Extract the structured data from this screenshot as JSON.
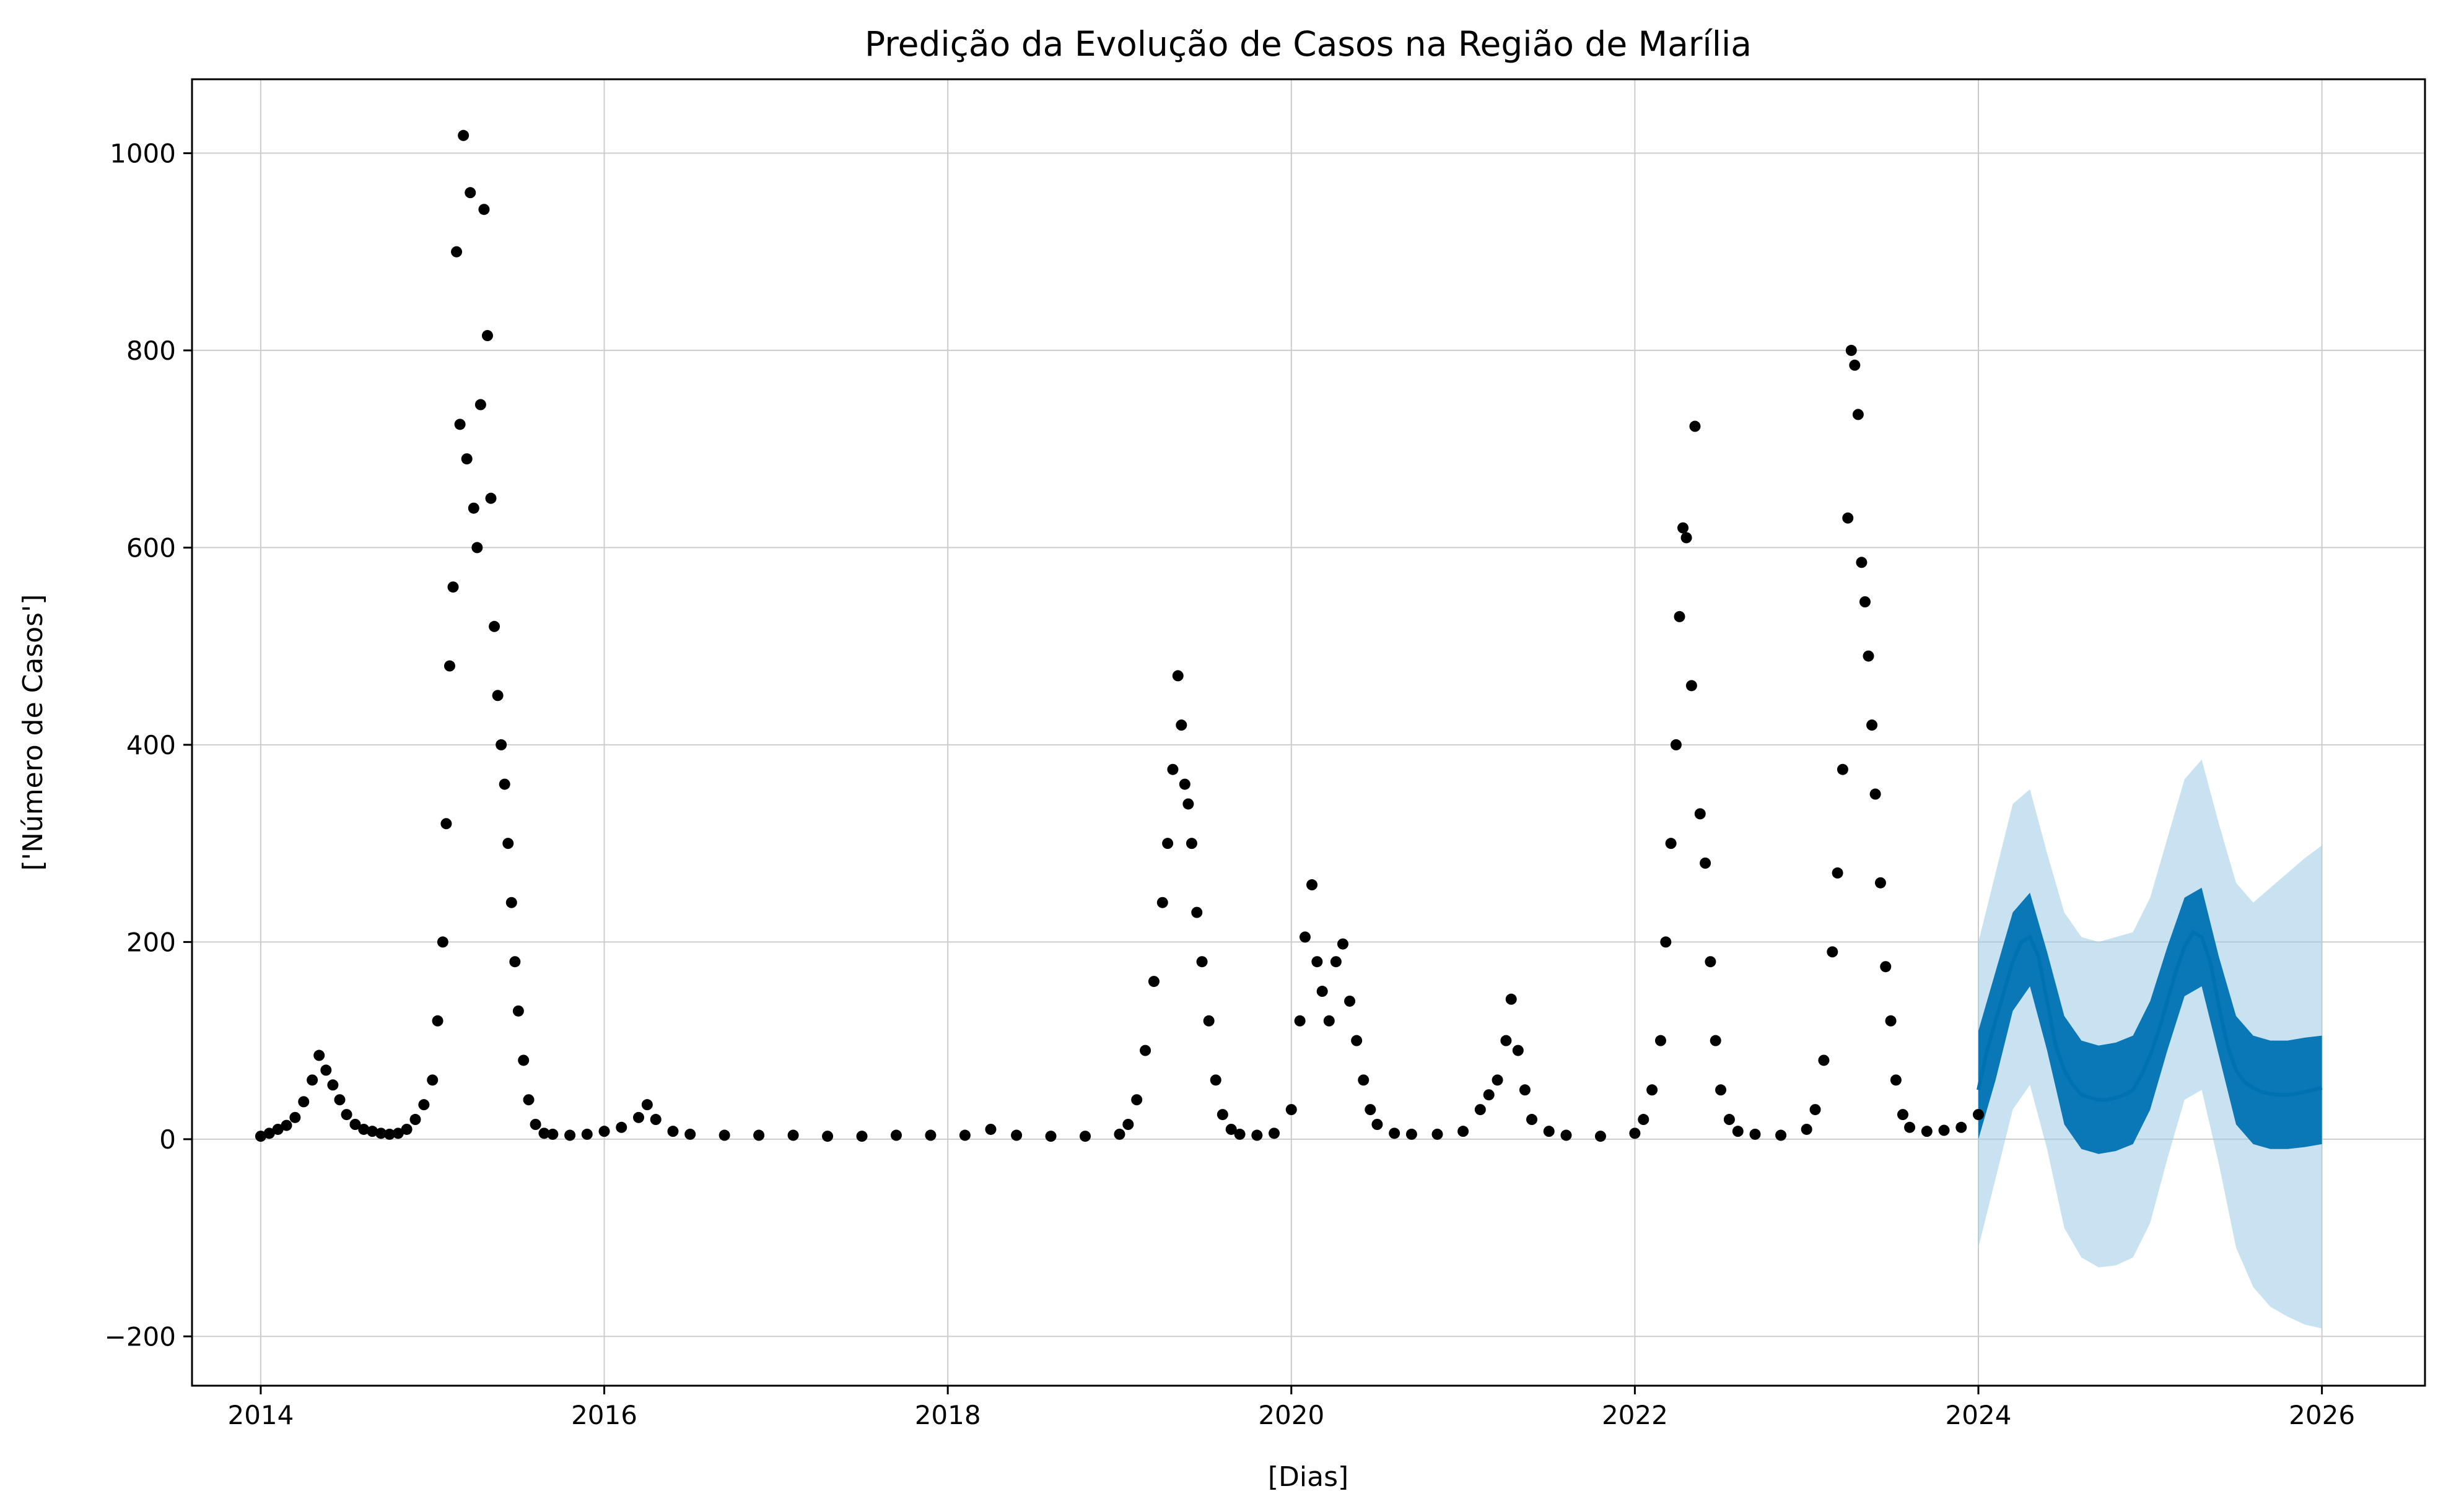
{
  "chart_data": {
    "type": "scatter",
    "title": "Predição da Evolução de Casos na Região de Marília",
    "xlabel": "[Dias]",
    "ylabel": "['Número de Casos']",
    "xlim": [
      2013.6,
      2026.6
    ],
    "ylim": [
      -250,
      1075
    ],
    "x_ticks": [
      2014,
      2016,
      2018,
      2020,
      2022,
      2024,
      2026
    ],
    "x_tick_labels": [
      "2014",
      "2016",
      "2018",
      "2020",
      "2022",
      "2024",
      "2026"
    ],
    "y_ticks": [
      -200,
      0,
      200,
      400,
      600,
      800,
      1000
    ],
    "y_tick_labels": [
      "−200",
      "0",
      "200",
      "400",
      "600",
      "800",
      "1000"
    ],
    "grid": true,
    "legend": "none",
    "colors": {
      "observed": "#000000",
      "forecast": "#0072b2",
      "uncertainty": "#9ccbe8"
    },
    "series": [
      {
        "role": "observed",
        "points": [
          [
            2014.0,
            3
          ],
          [
            2014.05,
            6
          ],
          [
            2014.1,
            10
          ],
          [
            2014.15,
            14
          ],
          [
            2014.2,
            22
          ],
          [
            2014.25,
            38
          ],
          [
            2014.3,
            60
          ],
          [
            2014.34,
            85
          ],
          [
            2014.38,
            70
          ],
          [
            2014.42,
            55
          ],
          [
            2014.46,
            40
          ],
          [
            2014.5,
            25
          ],
          [
            2014.55,
            15
          ],
          [
            2014.6,
            10
          ],
          [
            2014.65,
            8
          ],
          [
            2014.7,
            6
          ],
          [
            2014.75,
            5
          ],
          [
            2014.8,
            6
          ],
          [
            2014.85,
            10
          ],
          [
            2014.9,
            20
          ],
          [
            2014.95,
            35
          ],
          [
            2015.0,
            60
          ],
          [
            2015.03,
            120
          ],
          [
            2015.06,
            200
          ],
          [
            2015.08,
            320
          ],
          [
            2015.1,
            480
          ],
          [
            2015.12,
            560
          ],
          [
            2015.14,
            900
          ],
          [
            2015.16,
            725
          ],
          [
            2015.18,
            1018
          ],
          [
            2015.2,
            690
          ],
          [
            2015.22,
            960
          ],
          [
            2015.24,
            640
          ],
          [
            2015.26,
            600
          ],
          [
            2015.28,
            745
          ],
          [
            2015.3,
            943
          ],
          [
            2015.32,
            815
          ],
          [
            2015.34,
            650
          ],
          [
            2015.36,
            520
          ],
          [
            2015.38,
            450
          ],
          [
            2015.4,
            400
          ],
          [
            2015.42,
            360
          ],
          [
            2015.44,
            300
          ],
          [
            2015.46,
            240
          ],
          [
            2015.48,
            180
          ],
          [
            2015.5,
            130
          ],
          [
            2015.53,
            80
          ],
          [
            2015.56,
            40
          ],
          [
            2015.6,
            15
          ],
          [
            2015.65,
            6
          ],
          [
            2015.7,
            5
          ],
          [
            2015.8,
            4
          ],
          [
            2015.9,
            5
          ],
          [
            2016.0,
            8
          ],
          [
            2016.1,
            12
          ],
          [
            2016.2,
            22
          ],
          [
            2016.25,
            35
          ],
          [
            2016.3,
            20
          ],
          [
            2016.4,
            8
          ],
          [
            2016.5,
            5
          ],
          [
            2016.7,
            4
          ],
          [
            2016.9,
            4
          ],
          [
            2017.1,
            4
          ],
          [
            2017.3,
            3
          ],
          [
            2017.5,
            3
          ],
          [
            2017.7,
            4
          ],
          [
            2017.9,
            4
          ],
          [
            2018.1,
            4
          ],
          [
            2018.25,
            10
          ],
          [
            2018.4,
            4
          ],
          [
            2018.6,
            3
          ],
          [
            2018.8,
            3
          ],
          [
            2019.0,
            5
          ],
          [
            2019.05,
            15
          ],
          [
            2019.1,
            40
          ],
          [
            2019.15,
            90
          ],
          [
            2019.2,
            160
          ],
          [
            2019.25,
            240
          ],
          [
            2019.28,
            300
          ],
          [
            2019.31,
            375
          ],
          [
            2019.34,
            470
          ],
          [
            2019.36,
            420
          ],
          [
            2019.38,
            360
          ],
          [
            2019.4,
            340
          ],
          [
            2019.42,
            300
          ],
          [
            2019.45,
            230
          ],
          [
            2019.48,
            180
          ],
          [
            2019.52,
            120
          ],
          [
            2019.56,
            60
          ],
          [
            2019.6,
            25
          ],
          [
            2019.65,
            10
          ],
          [
            2019.7,
            5
          ],
          [
            2019.8,
            4
          ],
          [
            2019.9,
            6
          ],
          [
            2020.0,
            30
          ],
          [
            2020.05,
            120
          ],
          [
            2020.08,
            205
          ],
          [
            2020.12,
            258
          ],
          [
            2020.15,
            180
          ],
          [
            2020.18,
            150
          ],
          [
            2020.22,
            120
          ],
          [
            2020.26,
            180
          ],
          [
            2020.3,
            198
          ],
          [
            2020.34,
            140
          ],
          [
            2020.38,
            100
          ],
          [
            2020.42,
            60
          ],
          [
            2020.46,
            30
          ],
          [
            2020.5,
            15
          ],
          [
            2020.6,
            6
          ],
          [
            2020.7,
            5
          ],
          [
            2020.85,
            5
          ],
          [
            2021.0,
            8
          ],
          [
            2021.1,
            30
          ],
          [
            2021.15,
            45
          ],
          [
            2021.2,
            60
          ],
          [
            2021.25,
            100
          ],
          [
            2021.28,
            142
          ],
          [
            2021.32,
            90
          ],
          [
            2021.36,
            50
          ],
          [
            2021.4,
            20
          ],
          [
            2021.5,
            8
          ],
          [
            2021.6,
            4
          ],
          [
            2021.8,
            3
          ],
          [
            2022.0,
            6
          ],
          [
            2022.05,
            20
          ],
          [
            2022.1,
            50
          ],
          [
            2022.15,
            100
          ],
          [
            2022.18,
            200
          ],
          [
            2022.21,
            300
          ],
          [
            2022.24,
            400
          ],
          [
            2022.26,
            530
          ],
          [
            2022.28,
            620
          ],
          [
            2022.3,
            610
          ],
          [
            2022.33,
            460
          ],
          [
            2022.35,
            723
          ],
          [
            2022.38,
            330
          ],
          [
            2022.41,
            280
          ],
          [
            2022.44,
            180
          ],
          [
            2022.47,
            100
          ],
          [
            2022.5,
            50
          ],
          [
            2022.55,
            20
          ],
          [
            2022.6,
            8
          ],
          [
            2022.7,
            5
          ],
          [
            2022.85,
            4
          ],
          [
            2023.0,
            10
          ],
          [
            2023.05,
            30
          ],
          [
            2023.1,
            80
          ],
          [
            2023.15,
            190
          ],
          [
            2023.18,
            270
          ],
          [
            2023.21,
            375
          ],
          [
            2023.24,
            630
          ],
          [
            2023.26,
            800
          ],
          [
            2023.28,
            785
          ],
          [
            2023.3,
            735
          ],
          [
            2023.32,
            585
          ],
          [
            2023.34,
            545
          ],
          [
            2023.36,
            490
          ],
          [
            2023.38,
            420
          ],
          [
            2023.4,
            350
          ],
          [
            2023.43,
            260
          ],
          [
            2023.46,
            175
          ],
          [
            2023.49,
            120
          ],
          [
            2023.52,
            60
          ],
          [
            2023.56,
            25
          ],
          [
            2023.6,
            12
          ],
          [
            2023.7,
            8
          ],
          [
            2023.8,
            9
          ],
          [
            2023.9,
            12
          ],
          [
            2024.0,
            25
          ]
        ]
      },
      {
        "role": "forecast",
        "points": [
          [
            2024.0,
            50
          ],
          [
            2024.05,
            90
          ],
          [
            2024.1,
            120
          ],
          [
            2024.15,
            150
          ],
          [
            2024.2,
            180
          ],
          [
            2024.25,
            200
          ],
          [
            2024.3,
            205
          ],
          [
            2024.35,
            185
          ],
          [
            2024.4,
            140
          ],
          [
            2024.45,
            95
          ],
          [
            2024.5,
            70
          ],
          [
            2024.55,
            55
          ],
          [
            2024.6,
            45
          ],
          [
            2024.65,
            42
          ],
          [
            2024.7,
            40
          ],
          [
            2024.75,
            40
          ],
          [
            2024.8,
            42
          ],
          [
            2024.85,
            45
          ],
          [
            2024.9,
            50
          ],
          [
            2024.95,
            65
          ],
          [
            2025.0,
            85
          ],
          [
            2025.05,
            110
          ],
          [
            2025.1,
            140
          ],
          [
            2025.15,
            170
          ],
          [
            2025.2,
            195
          ],
          [
            2025.25,
            210
          ],
          [
            2025.3,
            205
          ],
          [
            2025.35,
            180
          ],
          [
            2025.4,
            135
          ],
          [
            2025.45,
            95
          ],
          [
            2025.5,
            70
          ],
          [
            2025.55,
            58
          ],
          [
            2025.6,
            52
          ],
          [
            2025.65,
            48
          ],
          [
            2025.7,
            46
          ],
          [
            2025.75,
            45
          ],
          [
            2025.8,
            45
          ],
          [
            2025.85,
            46
          ],
          [
            2025.9,
            48
          ],
          [
            2025.95,
            50
          ],
          [
            2026.0,
            52
          ]
        ],
        "band_inner": [
          [
            2024.0,
            0,
            110
          ],
          [
            2024.1,
            60,
            170
          ],
          [
            2024.2,
            130,
            230
          ],
          [
            2024.3,
            155,
            250
          ],
          [
            2024.4,
            90,
            190
          ],
          [
            2024.5,
            15,
            125
          ],
          [
            2024.6,
            -10,
            100
          ],
          [
            2024.7,
            -15,
            95
          ],
          [
            2024.8,
            -12,
            98
          ],
          [
            2024.9,
            -5,
            105
          ],
          [
            2025.0,
            30,
            140
          ],
          [
            2025.1,
            90,
            195
          ],
          [
            2025.2,
            145,
            245
          ],
          [
            2025.3,
            155,
            255
          ],
          [
            2025.4,
            85,
            185
          ],
          [
            2025.5,
            15,
            125
          ],
          [
            2025.6,
            -5,
            105
          ],
          [
            2025.7,
            -10,
            100
          ],
          [
            2025.8,
            -10,
            100
          ],
          [
            2025.9,
            -8,
            103
          ],
          [
            2026.0,
            -5,
            105
          ]
        ],
        "band_outer": [
          [
            2024.0,
            -110,
            200
          ],
          [
            2024.1,
            -40,
            270
          ],
          [
            2024.2,
            30,
            340
          ],
          [
            2024.3,
            55,
            355
          ],
          [
            2024.4,
            -10,
            290
          ],
          [
            2024.5,
            -90,
            230
          ],
          [
            2024.6,
            -120,
            205
          ],
          [
            2024.7,
            -130,
            200
          ],
          [
            2024.8,
            -128,
            205
          ],
          [
            2024.9,
            -120,
            210
          ],
          [
            2025.0,
            -85,
            245
          ],
          [
            2025.1,
            -20,
            305
          ],
          [
            2025.2,
            40,
            365
          ],
          [
            2025.3,
            50,
            385
          ],
          [
            2025.4,
            -25,
            320
          ],
          [
            2025.5,
            -110,
            260
          ],
          [
            2025.6,
            -150,
            240
          ],
          [
            2025.7,
            -170,
            255
          ],
          [
            2025.8,
            -180,
            270
          ],
          [
            2025.9,
            -188,
            285
          ],
          [
            2026.0,
            -192,
            298
          ]
        ]
      }
    ]
  }
}
